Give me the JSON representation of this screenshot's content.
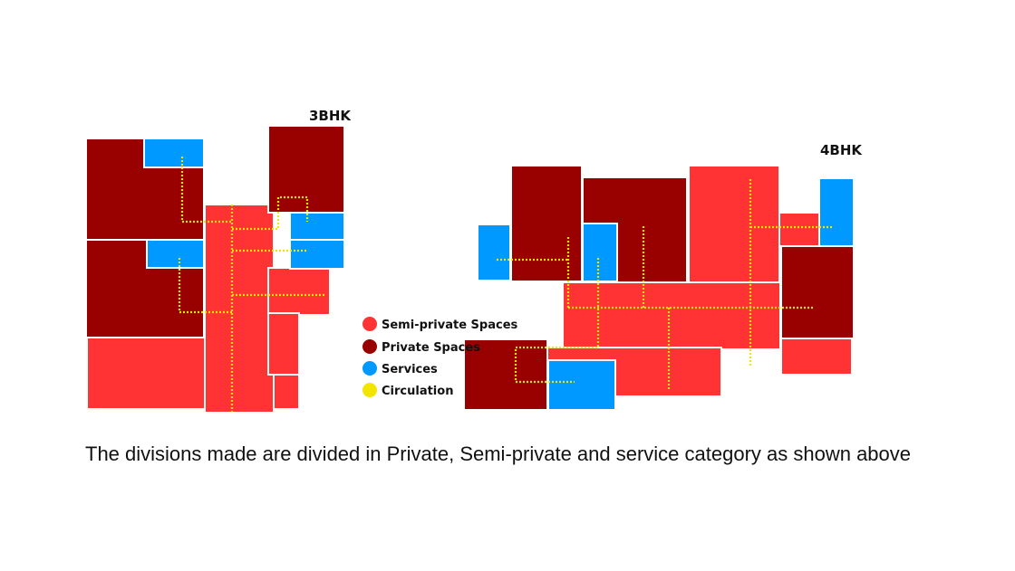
{
  "colors": {
    "semi_private": "#ff3333",
    "private": "#990000",
    "services": "#0099ff",
    "circulation": "#f2e600"
  },
  "plans": [
    {
      "title": "3BHK"
    },
    {
      "title": "4BHK"
    }
  ],
  "legend": [
    {
      "label": "Semi-private Spaces",
      "color": "#ff3333"
    },
    {
      "label": "Private Spaces",
      "color": "#990000"
    },
    {
      "label": "Services",
      "color": "#0099ff"
    },
    {
      "label": "Circulation",
      "color": "#f2e600"
    }
  ],
  "caption": "The divisions made are divided in Private, Semi-private and service category as shown above"
}
